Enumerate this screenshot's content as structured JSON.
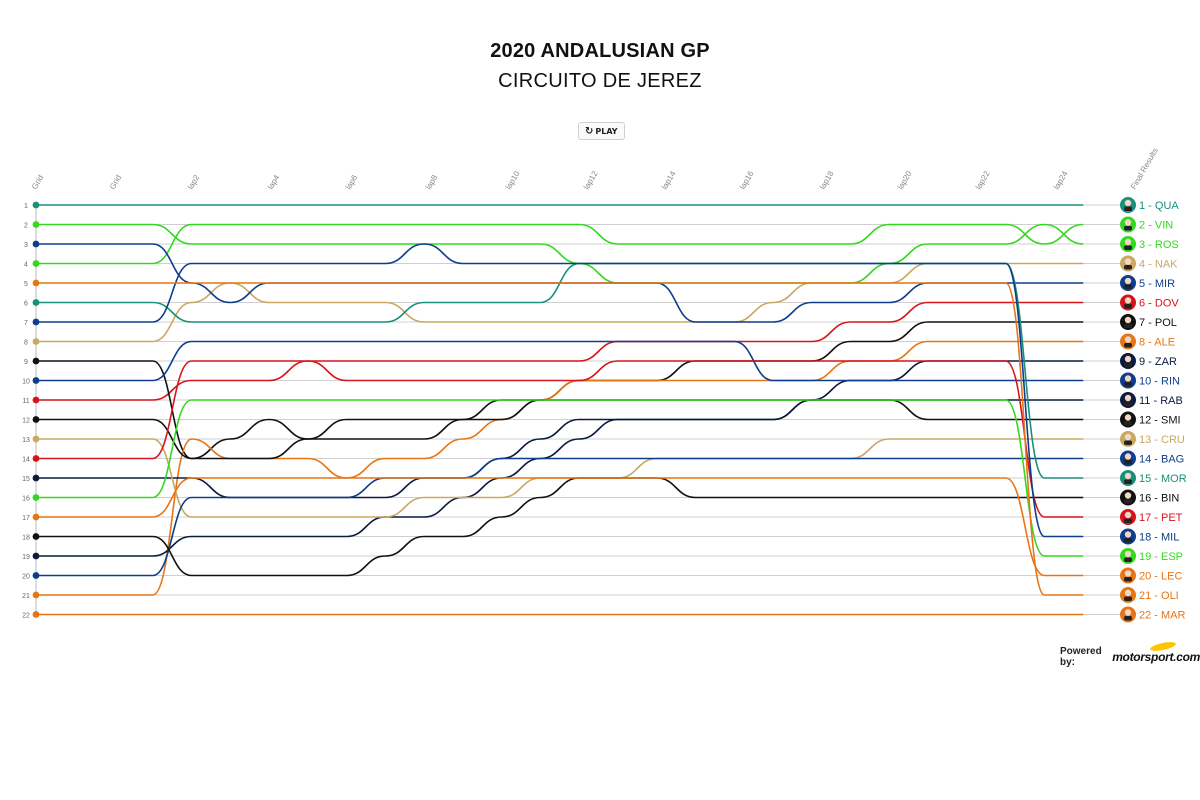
{
  "header": {
    "title": "2020 ANDALUSIAN GP",
    "subtitle": "CIRCUITO DE JEREZ",
    "play_label": "PLAY"
  },
  "footer": {
    "powered_by": "Powered by:",
    "logo_text": "motorsport.com"
  },
  "chart_data": {
    "type": "line",
    "title": "2020 ANDALUSIAN GP",
    "subtitle": "CIRCUITO DE JEREZ",
    "x_labels": [
      "Grid",
      "Grid",
      "lap2",
      "lap4",
      "lap6",
      "lap8",
      "lap10",
      "lap12",
      "lap14",
      "lap16",
      "lap18",
      "lap20",
      "lap22",
      "lap24",
      "Final Results"
    ],
    "laps": 25,
    "ylim": [
      1,
      22
    ],
    "grid_positions": [
      1,
      2,
      3,
      4,
      5,
      6,
      7,
      8,
      9,
      10,
      11,
      12,
      13,
      14,
      15,
      16,
      17,
      18,
      19,
      20,
      21,
      22
    ],
    "series": [
      {
        "name": "QUA",
        "color": "#1a8f7a",
        "positions": [
          1,
          1,
          1,
          1,
          1,
          1,
          1,
          1,
          1,
          1,
          1,
          1,
          1,
          1,
          1,
          1,
          1,
          1,
          1,
          1,
          1,
          1,
          1,
          1,
          1,
          1,
          1
        ],
        "final": 1
      },
      {
        "name": "VIN",
        "color": "#34d81f",
        "positions": [
          4,
          4,
          4,
          2,
          2,
          2,
          2,
          2,
          2,
          2,
          2,
          2,
          2,
          2,
          3,
          3,
          3,
          3,
          3,
          3,
          3,
          2,
          2,
          2,
          2,
          3,
          2
        ],
        "final": 2
      },
      {
        "name": "ROS",
        "color": "#34d81f",
        "positions": [
          2,
          2,
          2,
          3,
          3,
          3,
          3,
          3,
          3,
          3,
          3,
          3,
          3,
          4,
          5,
          5,
          5,
          5,
          5,
          5,
          5,
          4,
          3,
          3,
          3,
          2,
          3
        ],
        "final": 3
      },
      {
        "name": "NAK",
        "color": "#c9a861",
        "positions": [
          8,
          8,
          8,
          6,
          5,
          6,
          6,
          6,
          6,
          7,
          7,
          7,
          7,
          7,
          7,
          7,
          7,
          7,
          6,
          5,
          5,
          5,
          4,
          4,
          4,
          4,
          4
        ],
        "final": 4
      },
      {
        "name": "MIR",
        "color": "#0d3d8c",
        "positions": [
          3,
          3,
          3,
          5,
          6,
          5,
          5,
          5,
          5,
          5,
          5,
          5,
          5,
          5,
          5,
          5,
          7,
          7,
          7,
          6,
          6,
          6,
          5,
          5,
          5,
          5,
          5
        ],
        "final": 5
      },
      {
        "name": "DOV",
        "color": "#d6141b",
        "positions": [
          11,
          11,
          11,
          10,
          10,
          10,
          9,
          9,
          9,
          9,
          9,
          9,
          9,
          9,
          8,
          8,
          8,
          8,
          8,
          8,
          7,
          7,
          6,
          6,
          6,
          6,
          6
        ],
        "final": 6
      },
      {
        "name": "POL",
        "color": "#111111",
        "positions": [
          9,
          9,
          9,
          14,
          13,
          12,
          13,
          13,
          13,
          13,
          12,
          11,
          11,
          10,
          10,
          10,
          9,
          9,
          9,
          9,
          8,
          8,
          7,
          7,
          7,
          7,
          7
        ],
        "final": 7
      },
      {
        "name": "ALE",
        "color": "#e67517",
        "positions": [
          21,
          21,
          21,
          13,
          14,
          14,
          14,
          15,
          14,
          14,
          13,
          12,
          11,
          10,
          10,
          10,
          10,
          10,
          10,
          10,
          9,
          9,
          8,
          8,
          8,
          8,
          8
        ],
        "final": 8
      },
      {
        "name": "ZAR",
        "color": "#0a1b3d",
        "positions": [
          19,
          19,
          19,
          18,
          18,
          18,
          18,
          18,
          17,
          17,
          16,
          15,
          14,
          13,
          12,
          12,
          12,
          12,
          12,
          11,
          10,
          10,
          9,
          9,
          9,
          9,
          9
        ],
        "final": 9
      },
      {
        "name": "RIN",
        "color": "#0d3d8c",
        "positions": [
          10,
          10,
          10,
          8,
          8,
          8,
          8,
          8,
          8,
          8,
          8,
          8,
          8,
          8,
          8,
          8,
          8,
          8,
          10,
          10,
          10,
          10,
          10,
          10,
          10,
          10,
          10
        ],
        "final": 10
      },
      {
        "name": "RAB",
        "color": "#0a1b3d",
        "positions": [
          15,
          15,
          15,
          15,
          16,
          16,
          16,
          16,
          16,
          15,
          15,
          14,
          13,
          12,
          12,
          12,
          12,
          12,
          12,
          11,
          11,
          11,
          11,
          11,
          11,
          11,
          11
        ],
        "final": 11
      },
      {
        "name": "SMI",
        "color": "#111111",
        "positions": [
          12,
          12,
          12,
          14,
          14,
          14,
          13,
          12,
          12,
          12,
          12,
          12,
          11,
          11,
          11,
          11,
          11,
          11,
          11,
          11,
          11,
          11,
          12,
          12,
          12,
          12,
          12
        ],
        "final": 12
      },
      {
        "name": "CRU",
        "color": "#c9a861",
        "positions": [
          13,
          13,
          13,
          17,
          17,
          17,
          17,
          17,
          17,
          16,
          16,
          16,
          15,
          15,
          15,
          14,
          14,
          14,
          14,
          14,
          14,
          13,
          13,
          13,
          13,
          13,
          13
        ],
        "final": 13
      },
      {
        "name": "BAG",
        "color": "#0d3d8c",
        "positions": [
          20,
          20,
          20,
          16,
          16,
          16,
          16,
          16,
          15,
          15,
          15,
          14,
          14,
          14,
          14,
          14,
          14,
          14,
          14,
          14,
          14,
          14,
          14,
          14,
          14,
          14,
          14
        ],
        "final": 14
      },
      {
        "name": "MOR",
        "color": "#1a8f7a",
        "positions": [
          6,
          6,
          6,
          7,
          7,
          7,
          7,
          7,
          7,
          6,
          6,
          6,
          6,
          4,
          4,
          4,
          4,
          4,
          4,
          4,
          4,
          4,
          4,
          4,
          4,
          15,
          15
        ],
        "final": 15
      },
      {
        "name": "BIN",
        "color": "#111111",
        "positions": [
          18,
          18,
          18,
          20,
          20,
          20,
          20,
          20,
          19,
          18,
          18,
          17,
          16,
          15,
          15,
          15,
          16,
          16,
          16,
          16,
          16,
          16,
          16,
          16,
          16,
          16,
          16
        ],
        "final": 16
      },
      {
        "name": "PET",
        "color": "#d6141b",
        "positions": [
          14,
          14,
          14,
          9,
          9,
          9,
          9,
          10,
          10,
          10,
          10,
          10,
          10,
          10,
          9,
          9,
          9,
          9,
          9,
          9,
          9,
          9,
          9,
          9,
          9,
          17,
          17
        ],
        "final": 17
      },
      {
        "name": "MIL",
        "color": "#0d3d8c",
        "positions": [
          7,
          7,
          7,
          4,
          4,
          4,
          4,
          4,
          4,
          3,
          4,
          4,
          4,
          4,
          4,
          4,
          4,
          4,
          4,
          4,
          4,
          4,
          4,
          4,
          4,
          18,
          18
        ],
        "final": 18
      },
      {
        "name": "ESP",
        "color": "#34d81f",
        "positions": [
          16,
          16,
          16,
          11,
          11,
          11,
          11,
          11,
          11,
          11,
          11,
          11,
          11,
          11,
          11,
          11,
          11,
          11,
          11,
          11,
          11,
          11,
          11,
          11,
          11,
          19,
          19
        ],
        "final": 19
      },
      {
        "name": "LEC",
        "color": "#e67517",
        "positions": [
          17,
          17,
          17,
          15,
          15,
          15,
          15,
          15,
          15,
          15,
          15,
          15,
          15,
          15,
          15,
          15,
          15,
          15,
          15,
          15,
          15,
          15,
          15,
          15,
          15,
          20,
          20
        ],
        "final": 20
      },
      {
        "name": "OLI",
        "color": "#e67517",
        "positions": [
          5,
          5,
          5,
          5,
          5,
          5,
          5,
          5,
          5,
          5,
          5,
          5,
          5,
          5,
          5,
          5,
          5,
          5,
          5,
          5,
          5,
          5,
          5,
          5,
          5,
          21,
          21
        ],
        "final": 21
      },
      {
        "name": "MAR",
        "color": "#e67517",
        "positions": [
          22,
          22,
          22,
          22,
          22,
          22,
          22,
          22,
          22,
          22,
          22,
          22,
          22,
          22,
          22,
          22,
          22,
          22,
          22,
          22,
          22,
          22,
          22,
          22,
          22,
          22,
          22
        ],
        "final": 22
      }
    ],
    "grid": true,
    "legend": "right"
  }
}
